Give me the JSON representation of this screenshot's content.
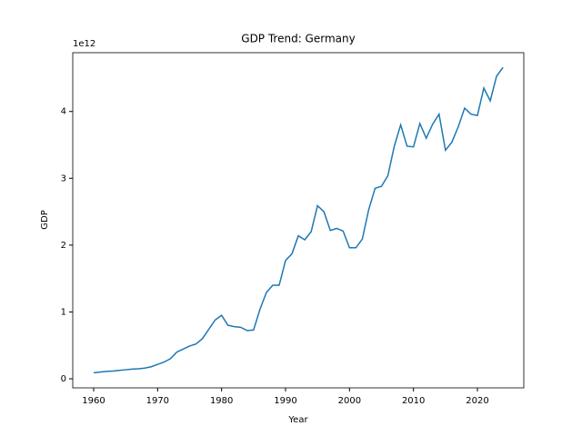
{
  "chart_data": {
    "type": "line",
    "title": "GDP Trend: Germany",
    "x_label": "Year",
    "y_label": "GDP",
    "y_offset_label": "1e12",
    "x": [
      1960,
      1961,
      1962,
      1963,
      1964,
      1965,
      1966,
      1967,
      1968,
      1969,
      1970,
      1971,
      1972,
      1973,
      1974,
      1975,
      1976,
      1977,
      1978,
      1979,
      1980,
      1981,
      1982,
      1983,
      1984,
      1985,
      1986,
      1987,
      1988,
      1989,
      1990,
      1991,
      1992,
      1993,
      1994,
      1995,
      1996,
      1997,
      1998,
      1999,
      2000,
      2001,
      2002,
      2003,
      2004,
      2005,
      2006,
      2007,
      2008,
      2009,
      2010,
      2011,
      2012,
      2013,
      2014,
      2015,
      2016,
      2017,
      2018,
      2019,
      2020,
      2021,
      2022,
      2023,
      2024
    ],
    "series": [
      {
        "name": "GDP",
        "color": "#1f77b4",
        "values": [
          0.09,
          0.1,
          0.11,
          0.115,
          0.125,
          0.135,
          0.145,
          0.15,
          0.16,
          0.18,
          0.215,
          0.25,
          0.3,
          0.4,
          0.445,
          0.49,
          0.52,
          0.6,
          0.74,
          0.88,
          0.95,
          0.8,
          0.78,
          0.77,
          0.72,
          0.73,
          1.04,
          1.29,
          1.4,
          1.4,
          1.77,
          1.87,
          2.14,
          2.08,
          2.2,
          2.59,
          2.5,
          2.22,
          2.25,
          2.21,
          1.96,
          1.96,
          2.09,
          2.53,
          2.85,
          2.88,
          3.04,
          3.48,
          3.8,
          3.48,
          3.47,
          3.82,
          3.6,
          3.81,
          3.96,
          3.42,
          3.54,
          3.77,
          4.05,
          3.96,
          3.94,
          4.35,
          4.16,
          4.53,
          4.66
        ]
      }
    ],
    "xlim": [
      1956.73,
      2027.25
    ],
    "ylim": [
      -0.136,
      4.88
    ],
    "xticks": [
      1960,
      1970,
      1980,
      1990,
      2000,
      2010,
      2020
    ],
    "yticks": [
      0,
      1,
      2,
      3,
      4
    ]
  }
}
